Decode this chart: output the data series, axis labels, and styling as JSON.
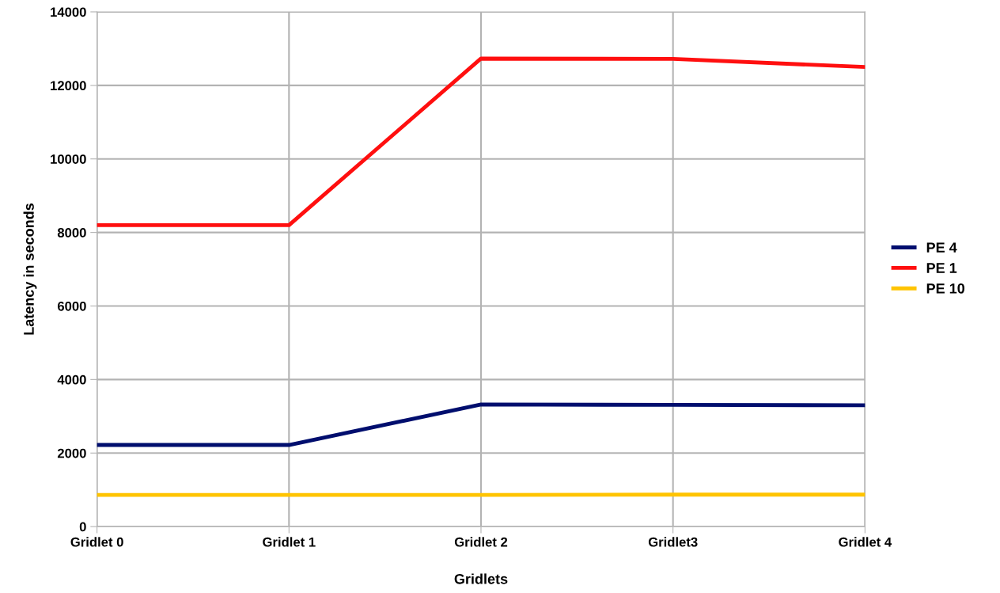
{
  "chart_data": {
    "type": "line",
    "xlabel": "Gridlets",
    "ylabel": "Latency in seconds",
    "categories": [
      "Gridlet 0",
      "Gridlet 1",
      "Gridlet 2",
      "Gridlet3",
      "Gridlet 4"
    ],
    "series": [
      {
        "name": "PE 4",
        "color": "#000e6e",
        "values": [
          2220,
          2220,
          3320,
          3310,
          3300
        ]
      },
      {
        "name": "PE 1",
        "color": "#ff0f0f",
        "values": [
          8200,
          8200,
          12730,
          12720,
          12500
        ]
      },
      {
        "name": "PE 10",
        "color": "#ffc400",
        "values": [
          860,
          860,
          860,
          870,
          870
        ]
      }
    ],
    "ylim": [
      0,
      14000
    ],
    "yticks": [
      0,
      2000,
      4000,
      6000,
      8000,
      10000,
      12000,
      14000
    ],
    "grid": true,
    "legend": "right",
    "marker": "none",
    "line_style": "solid"
  }
}
